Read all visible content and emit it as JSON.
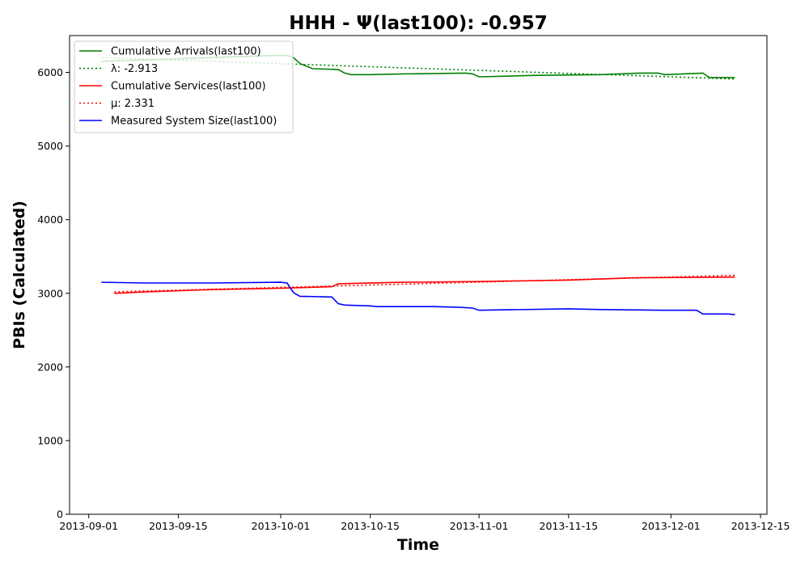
{
  "chart_data": {
    "type": "line",
    "title": "HHH -  Ψ(last100): -0.957",
    "xlabel": "Time",
    "ylabel": "PBIs (Calculated)",
    "xlim": [
      "2013-08-29",
      "2013-12-16"
    ],
    "ylim": [
      0,
      6500
    ],
    "x_ticks": [
      "2013-09-01",
      "2013-09-15",
      "2013-10-01",
      "2013-10-15",
      "2013-11-01",
      "2013-11-15",
      "2013-12-01",
      "2013-12-15"
    ],
    "y_ticks": [
      0,
      1000,
      2000,
      3000,
      4000,
      5000,
      6000
    ],
    "grid": false,
    "legend_position": "top-left",
    "series": [
      {
        "name": "Cumulative Arrivals(last100)",
        "color": "#008000",
        "style": "solid",
        "points": [
          [
            "2013-09-03",
            6150
          ],
          [
            "2013-09-10",
            6170
          ],
          [
            "2013-09-20",
            6200
          ],
          [
            "2013-09-30",
            6230
          ],
          [
            "2013-10-02",
            6230
          ],
          [
            "2013-10-03",
            6200
          ],
          [
            "2013-10-04",
            6120
          ],
          [
            "2013-10-06",
            6050
          ],
          [
            "2013-10-10",
            6040
          ],
          [
            "2013-10-11",
            5990
          ],
          [
            "2013-10-12",
            5970
          ],
          [
            "2013-10-15",
            5970
          ],
          [
            "2013-10-20",
            5980
          ],
          [
            "2013-10-30",
            5990
          ],
          [
            "2013-10-31",
            5980
          ],
          [
            "2013-11-01",
            5940
          ],
          [
            "2013-11-10",
            5960
          ],
          [
            "2013-11-20",
            5970
          ],
          [
            "2013-11-26",
            5990
          ],
          [
            "2013-11-29",
            5990
          ],
          [
            "2013-11-30",
            5970
          ],
          [
            "2013-12-06",
            5990
          ],
          [
            "2013-12-07",
            5930
          ],
          [
            "2013-12-11",
            5930
          ]
        ]
      },
      {
        "name": "λ: -2.913",
        "color": "#008000",
        "style": "dotted",
        "points": [
          [
            "2013-09-03",
            6200
          ],
          [
            "2013-12-11",
            5910
          ]
        ]
      },
      {
        "name": "Cumulative Services(last100)",
        "color": "#ff0000",
        "style": "solid",
        "points": [
          [
            "2013-09-05",
            3000
          ],
          [
            "2013-09-10",
            3020
          ],
          [
            "2013-09-20",
            3050
          ],
          [
            "2013-10-01",
            3070
          ],
          [
            "2013-10-09",
            3090
          ],
          [
            "2013-10-10",
            3130
          ],
          [
            "2013-10-20",
            3150
          ],
          [
            "2013-11-01",
            3160
          ],
          [
            "2013-11-15",
            3180
          ],
          [
            "2013-11-25",
            3210
          ],
          [
            "2013-12-11",
            3220
          ]
        ]
      },
      {
        "name": "μ: 2.331",
        "color": "#ff0000",
        "style": "dotted",
        "points": [
          [
            "2013-09-05",
            3020
          ],
          [
            "2013-12-11",
            3245
          ]
        ]
      },
      {
        "name": "Measured System Size(last100)",
        "color": "#0000ff",
        "style": "solid",
        "points": [
          [
            "2013-09-03",
            3150
          ],
          [
            "2013-09-10",
            3140
          ],
          [
            "2013-09-20",
            3140
          ],
          [
            "2013-10-01",
            3150
          ],
          [
            "2013-10-02",
            3140
          ],
          [
            "2013-10-03",
            3010
          ],
          [
            "2013-10-04",
            2960
          ],
          [
            "2013-10-09",
            2950
          ],
          [
            "2013-10-10",
            2860
          ],
          [
            "2013-10-11",
            2840
          ],
          [
            "2013-10-15",
            2830
          ],
          [
            "2013-10-16",
            2820
          ],
          [
            "2013-10-25",
            2820
          ],
          [
            "2013-10-29",
            2810
          ],
          [
            "2013-10-31",
            2800
          ],
          [
            "2013-11-01",
            2770
          ],
          [
            "2013-11-15",
            2790
          ],
          [
            "2013-11-20",
            2780
          ],
          [
            "2013-11-30",
            2770
          ],
          [
            "2013-12-05",
            2770
          ],
          [
            "2013-12-06",
            2720
          ],
          [
            "2013-12-10",
            2720
          ],
          [
            "2013-12-11",
            2710
          ]
        ]
      }
    ]
  }
}
